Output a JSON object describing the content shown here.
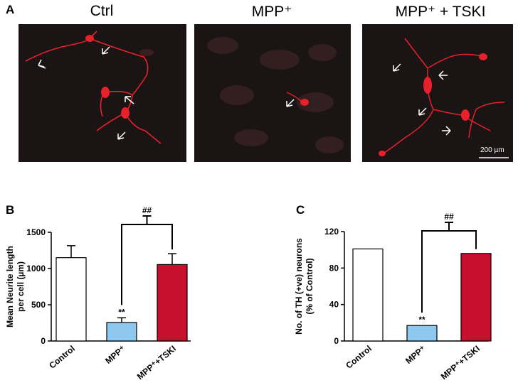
{
  "panels": {
    "a_letter": "A",
    "b_letter": "B",
    "c_letter": "C"
  },
  "micrographs": [
    {
      "title": "Ctrl"
    },
    {
      "title": "MPP⁺"
    },
    {
      "title": "MPP⁺ + TSKI"
    }
  ],
  "scale_bar_label": "200 µm",
  "colors": {
    "control_bar": "#ffffff",
    "mpp_bar": "#8ec8ee",
    "mpp_tski_bar": "#c8102e",
    "neuron_red": "#e8202a",
    "micrograph_bg": "#1a1414"
  },
  "chart_data": [
    {
      "type": "bar",
      "panel": "B",
      "categories": [
        "Control",
        "MPP⁺",
        "MPP⁺+TSKI"
      ],
      "values": [
        1150,
        255,
        1055
      ],
      "errors": [
        165,
        65,
        150
      ],
      "ylabel_line1": "Mean Neurite length",
      "ylabel_line2": "per cell (µm)",
      "ylim": [
        0,
        1500
      ],
      "yticks": [
        0,
        500,
        1000,
        1500
      ],
      "annotations": {
        "mpp_mark": "**",
        "bracket_mark": "##"
      }
    },
    {
      "type": "bar",
      "panel": "C",
      "categories": [
        "Control",
        "MPP⁺",
        "MPP⁺+TSKI"
      ],
      "values": [
        101,
        17,
        96
      ],
      "errors": [
        0,
        0,
        0
      ],
      "ylabel_line1": "No. of TH (+ve) neurons",
      "ylabel_line2": "(% of Control)",
      "ylim": [
        0,
        120
      ],
      "yticks": [
        0,
        40,
        80,
        120
      ],
      "annotations": {
        "mpp_mark": "**",
        "bracket_mark": "##"
      }
    }
  ]
}
